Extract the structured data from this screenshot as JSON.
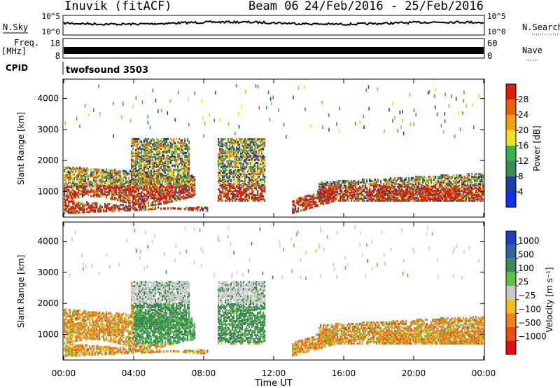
{
  "header": {
    "station": "Inuvik (fitACF)",
    "beam": "Beam 06",
    "date_range": "24/Feb/2016 - 25/Feb/2016"
  },
  "top_panels": {
    "nsky_label": "N.Sky",
    "nsky_ticks": [
      "10^5",
      "10^0"
    ],
    "nsearch_label": "N.Search",
    "nsearch_ticks": [
      "10^5",
      "10^0"
    ],
    "freq_label": "Freq.",
    "freq_unit": "[MHz]",
    "freq_ticks": [
      "18",
      "8"
    ],
    "nave_label": "Nave",
    "nave_ticks": [
      "60",
      "0"
    ],
    "cpid_label": "CPID",
    "cpid_value": "twofsound 3503"
  },
  "chart_data": [
    {
      "type": "heatmap",
      "name": "power",
      "ylabel": "Slant Range [km]",
      "yticks": [
        1000,
        2000,
        3000,
        4000
      ],
      "ylim": [
        200,
        4600
      ],
      "xlim": [
        0,
        24
      ],
      "colorbar_label": "Power [dB]",
      "colorbar_ticks": [
        "4",
        "8",
        "12",
        "16",
        "20",
        "24",
        "28"
      ],
      "colors": [
        "#1030e8",
        "#2040a0",
        "#3a8a5a",
        "#3cb04a",
        "#f0e020",
        "#f0a010",
        "#e86010",
        "#d82010"
      ]
    },
    {
      "type": "heatmap",
      "name": "velocity",
      "ylabel": "Slant Range [km]",
      "yticks": [
        1000,
        2000,
        3000,
        4000
      ],
      "ylim": [
        200,
        4600
      ],
      "xlim": [
        0,
        24
      ],
      "xlabel": "Time UT",
      "xticks": [
        "00:00",
        "04:00",
        "08:00",
        "12:00",
        "16:00",
        "20:00",
        "00:00"
      ],
      "colorbar_label": "Velocity [m s⁻¹]",
      "colorbar_ticks": [
        "1000",
        "500",
        "100",
        "25",
        "−25",
        "−100",
        "−500",
        "−1000"
      ],
      "colors": [
        "#2040c0",
        "#3060a0",
        "#3a8a5a",
        "#60c040",
        "#c8c8c8",
        "#f0c020",
        "#f08020",
        "#e85010",
        "#e01010"
      ]
    }
  ],
  "colors": {
    "nsky_trace": "#000000",
    "freq_trace": "#000000"
  }
}
